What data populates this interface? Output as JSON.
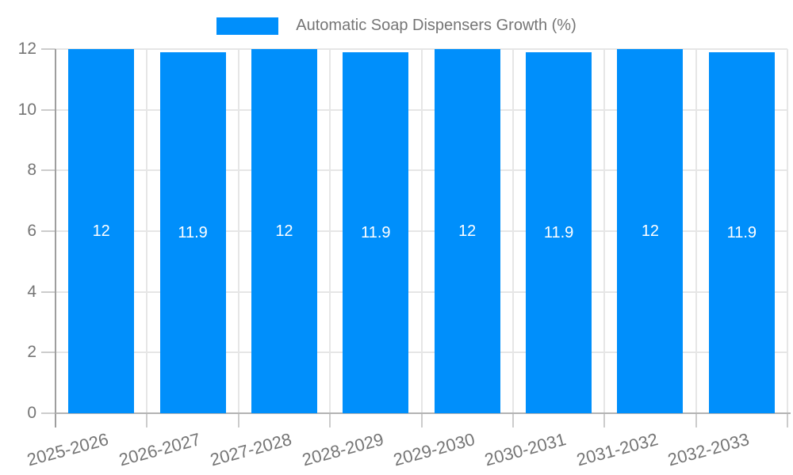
{
  "legend": {
    "label": "Automatic Soap Dispensers Growth (%)"
  },
  "colors": {
    "bar": "#008FFB",
    "grid": "#e6e6e6",
    "tick": "#cccccc",
    "y_axis_line": "#9e9e9e",
    "baseline": "#b3b3b3",
    "axis_text": "#757575",
    "bar_label_text": "#ffffff",
    "background": "#ffffff"
  },
  "chart_data": {
    "type": "bar",
    "title": "Automatic Soap Dispensers Growth (%)",
    "xlabel": "",
    "ylabel": "",
    "categories": [
      "2025-2026",
      "2026-2027",
      "2027-2028",
      "2028-2029",
      "2029-2030",
      "2030-2031",
      "2031-2032",
      "2032-2033"
    ],
    "values": [
      12,
      11.9,
      12,
      11.9,
      12,
      11.9,
      12,
      11.9
    ],
    "bar_labels": [
      "12",
      "11.9",
      "12",
      "11.9",
      "12",
      "11.9",
      "12",
      "11.9"
    ],
    "ylim": [
      0,
      12
    ],
    "yticks": [
      0,
      2,
      4,
      6,
      8,
      10,
      12
    ],
    "ytick_labels": [
      "0",
      "2",
      "4",
      "6",
      "8",
      "10",
      "12"
    ],
    "grid": true,
    "legend_position": "top"
  }
}
